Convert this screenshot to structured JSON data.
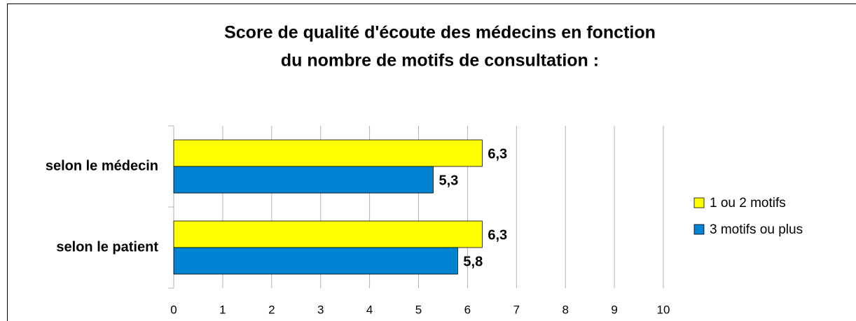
{
  "chart_data": {
    "type": "barh",
    "title": [
      "Score de qualité d'écoute des médecins en fonction",
      "du nombre de motifs de consultation :"
    ],
    "categories": [
      "selon le médecin",
      "selon le patient"
    ],
    "series": [
      {
        "name": "1 ou 2 motifs",
        "color": "#ffff00",
        "values": [
          6.3,
          6.3
        ],
        "value_labels": [
          "6,3",
          "6,3"
        ]
      },
      {
        "name": "3 motifs ou plus",
        "color": "#0084d1",
        "values": [
          5.3,
          5.8
        ],
        "value_labels": [
          "5,3",
          "5,8"
        ]
      }
    ],
    "xlim": [
      0,
      10
    ],
    "xticks": [
      0,
      1,
      2,
      3,
      4,
      5,
      6,
      7,
      8,
      9,
      10
    ],
    "grid": true,
    "legend": "right"
  }
}
